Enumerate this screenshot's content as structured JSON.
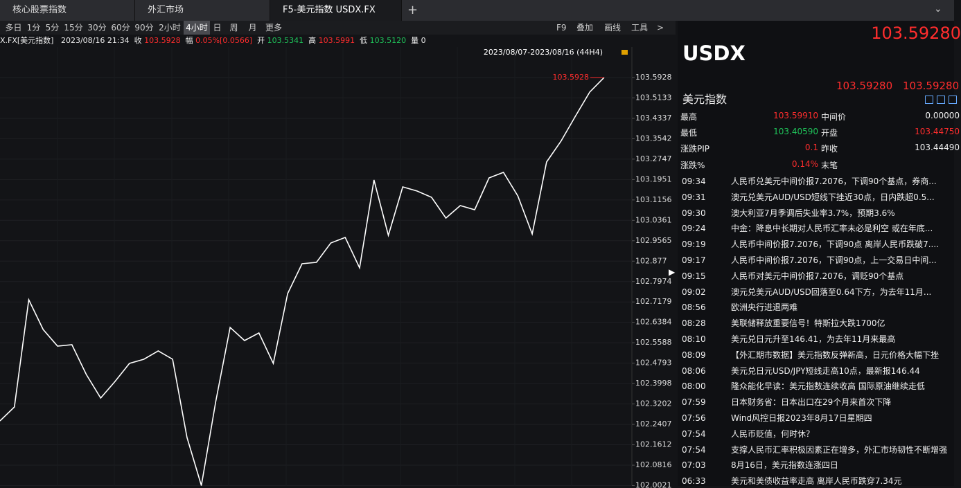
{
  "tabs": [
    "核心股票指数",
    "外汇市场",
    "F5-美元指数 USDX.FX"
  ],
  "toolbar": {
    "periods": [
      "多日",
      "1分",
      "5分",
      "15分",
      "30分",
      "60分",
      "90分",
      "2小时",
      "4小时",
      "日",
      "周",
      "月",
      "更多"
    ],
    "active_period_index": 8,
    "tools": [
      "F9",
      "叠加",
      "画线",
      "工具",
      ">"
    ]
  },
  "info_bar": {
    "symbol": "X.FX[美元指数]",
    "time": "2023/08/16 21:34",
    "close_label": "收",
    "close": "103.5928",
    "change_label": "幅",
    "change": "0.05%[0.0566]",
    "open_label": "开",
    "open": "103.5341",
    "high_label": "高",
    "high": "103.5991",
    "low_label": "低",
    "low": "103.5120",
    "volume_label": "量",
    "volume": "0"
  },
  "chart_data": {
    "type": "line",
    "range_label": "2023/08/07-2023/08/16 (44H4)",
    "last_label": "103.5928",
    "series": [
      {
        "color": "#ffffff",
        "values": [
          102.2544,
          102.3084,
          102.7266,
          102.6106,
          102.5458,
          102.5512,
          102.4352,
          102.3435,
          102.4082,
          102.4784,
          102.4946,
          102.527,
          102.4946,
          102.1897,
          102.0021,
          102.33,
          102.6187,
          102.5674,
          102.5971,
          102.4784,
          102.7509,
          102.8669,
          102.8723,
          102.9479,
          102.9695,
          102.8508,
          103.1934,
          102.9776,
          103.1665,
          103.1503,
          103.126,
          103.045,
          103.0936,
          103.0774,
          103.2015,
          103.2231,
          103.1314,
          102.983,
          103.2636,
          103.3446,
          103.4417,
          103.5361,
          103.5928
        ]
      }
    ],
    "ylim": [
      102.0008,
      103.6791
    ],
    "yticks": [
      103.5928,
      103.5133,
      103.4337,
      103.3542,
      103.2747,
      103.1951,
      103.1156,
      103.0361,
      102.9565,
      102.877,
      102.7974,
      102.7179,
      102.6384,
      102.5588,
      102.4793,
      102.3998,
      102.3202,
      102.2407,
      102.1612,
      102.0816,
      102.0021
    ],
    "grid": true
  },
  "quote": {
    "price": "103.59280",
    "code": "USDX",
    "name": "美元指数",
    "bid": "103.59280",
    "ask": "103.59280",
    "rows": [
      [
        "最高",
        "103.59910",
        "中间价",
        "0.00000"
      ],
      [
        "最低",
        "103.40590",
        "开盘",
        "103.44750"
      ],
      [
        "涨跌PIP",
        "0.1",
        "昨收",
        "103.44490"
      ],
      [
        "涨跌%",
        "0.14%",
        "末笔"
      ]
    ]
  },
  "news": [
    {
      "time": "09:34",
      "text": "人民币兑美元中间价报7.2076，下调90个基点，券商..."
    },
    {
      "time": "09:31",
      "text": "澳元兑美元AUD/USD短线下挫近30点，日内跌超0.5..."
    },
    {
      "time": "09:30",
      "text": "澳大利亚7月季调后失业率3.7%，预期3.6%"
    },
    {
      "time": "09:24",
      "text": "中金：降息中长期对人民币汇率未必是利空 或在年底..."
    },
    {
      "time": "09:19",
      "text": "人民币中间价报7.2076，下调90点 离岸人民币跌破7...."
    },
    {
      "time": "09:17",
      "text": "人民币中间价报7.2076，下调90点，上一交易日中间..."
    },
    {
      "time": "09:15",
      "text": "人民币对美元中间价报7.2076，调贬90个基点"
    },
    {
      "time": "09:02",
      "text": "澳元兑美元AUD/USD回落至0.64下方，为去年11月..."
    },
    {
      "time": "08:56",
      "text": "欧洲央行进退两难"
    },
    {
      "time": "08:28",
      "text": "美联储释放重要信号！特斯拉大跌1700亿"
    },
    {
      "time": "08:10",
      "text": "美元兑日元升至146.41，为去年11月来最高"
    },
    {
      "time": "08:09",
      "text": "【外汇期市数据】美元指数反弹新高，日元价格大幅下挫"
    },
    {
      "time": "08:06",
      "text": "美元兑日元USD/JPY短线走高10点，最新报146.44"
    },
    {
      "time": "08:00",
      "text": "隆众能化早读：美元指数连续收高 国际原油继续走低"
    },
    {
      "time": "07:59",
      "text": "日本财务省：日本出口在29个月来首次下降"
    },
    {
      "time": "07:56",
      "text": "Wind风控日报2023年8月17日星期四"
    },
    {
      "time": "07:54",
      "text": "人民币贬值，何时休？"
    },
    {
      "time": "07:54",
      "text": "支撑人民币汇率积极因素正在增多，外汇市场韧性不断增强"
    },
    {
      "time": "07:03",
      "text": "8月16日，美元指数连涨四日"
    },
    {
      "time": "06:33",
      "text": "美元和美债收益率走高 离岸人民币跌穿7.34元"
    }
  ]
}
